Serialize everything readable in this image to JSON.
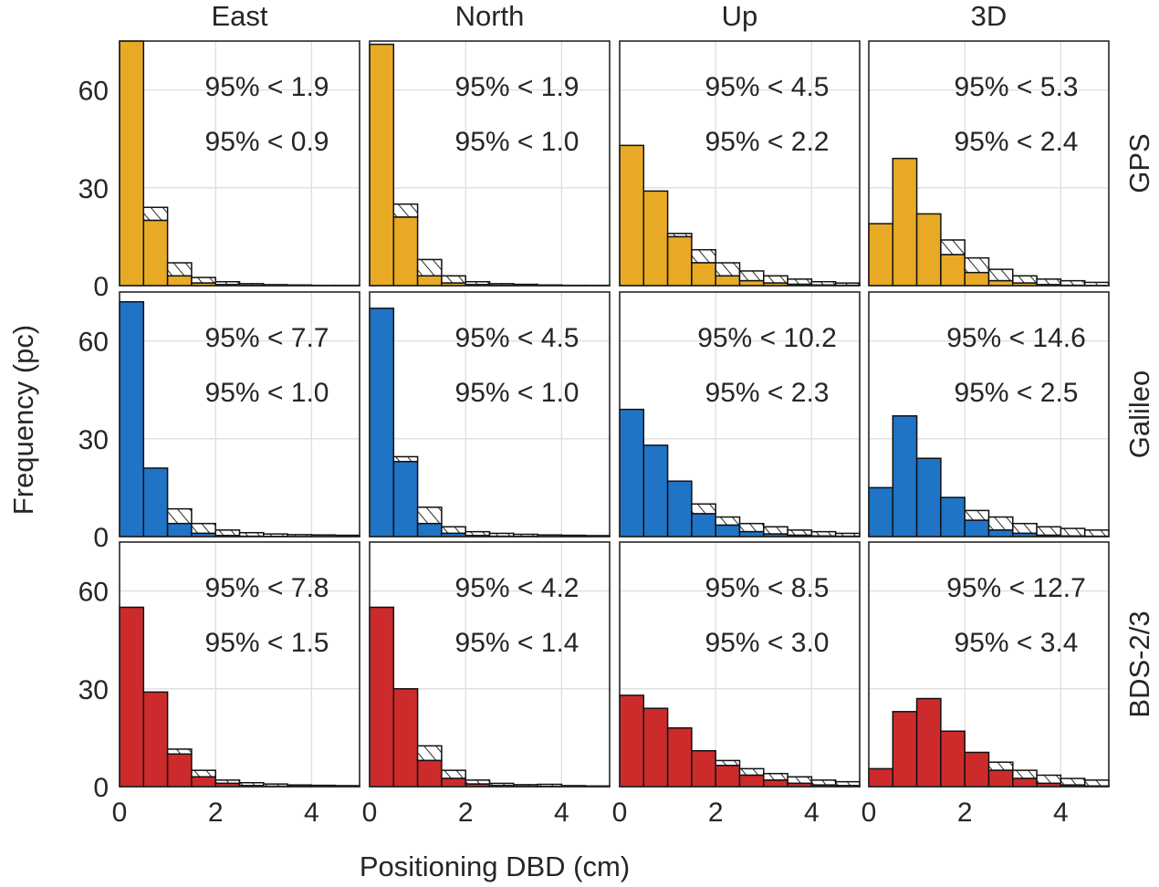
{
  "chart_data": {
    "type": "bar",
    "xlabel": "Positioning DBD (cm)",
    "ylabel": "Frequency (pc)",
    "xlim": [
      0,
      5
    ],
    "ylim": [
      0,
      75
    ],
    "xticks": [
      "0",
      "2",
      "4"
    ],
    "yticks": [
      "0",
      "30",
      "60"
    ],
    "bin_edges": [
      0,
      0.5,
      1.0,
      1.5,
      2.0,
      2.5,
      3.0,
      3.5,
      4.0,
      4.5,
      5.0
    ],
    "grid": true,
    "colors": {
      "GPS": "#e8aa25",
      "Galileo": "#1f74c6",
      "BDS-2/3": "#cd2b2b",
      "other": "#111111"
    },
    "columns": [
      "East",
      "North",
      "Up",
      "3D"
    ],
    "rows": [
      "GPS",
      "Galileo",
      "BDS-2/3"
    ],
    "panels": [
      {
        "row": "GPS",
        "col": "East",
        "stat_other": "95% < 1.9",
        "stat_system": "95% < 0.9",
        "system": [
          78,
          20,
          3,
          0.8,
          0.3,
          0.1,
          0.05,
          0,
          0,
          0
        ],
        "total": [
          78,
          24,
          7,
          2.5,
          1.2,
          0.6,
          0.3,
          0.2,
          0.1,
          0.1
        ]
      },
      {
        "row": "GPS",
        "col": "North",
        "stat_other": "95% < 1.9",
        "stat_system": "95% < 1.0",
        "system": [
          74,
          21,
          3,
          0.8,
          0.3,
          0.1,
          0.05,
          0,
          0,
          0
        ],
        "total": [
          74,
          25,
          8,
          3,
          1.2,
          0.6,
          0.4,
          0.2,
          0.1,
          0.1
        ]
      },
      {
        "row": "GPS",
        "col": "Up",
        "stat_other": "95% < 4.5",
        "stat_system": "95% < 2.2",
        "system": [
          43,
          29,
          15,
          7,
          3,
          1.5,
          0.8,
          0.4,
          0.2,
          0.1
        ],
        "total": [
          43,
          29,
          16,
          11,
          7,
          4.5,
          3,
          2,
          1.2,
          0.8
        ]
      },
      {
        "row": "GPS",
        "col": "3D",
        "stat_other": "95% < 5.3",
        "stat_system": "95% < 2.4",
        "system": [
          19,
          39,
          22,
          9.5,
          4,
          1.5,
          0.8,
          0.3,
          0.1,
          0.05
        ],
        "total": [
          19,
          39,
          22,
          14,
          8.5,
          5,
          3,
          2,
          1.5,
          1
        ]
      },
      {
        "row": "Galileo",
        "col": "East",
        "stat_other": "95% < 7.7",
        "stat_system": "95% < 1.0",
        "system": [
          72,
          21,
          4,
          1,
          0.3,
          0.1,
          0.05,
          0,
          0,
          0
        ],
        "total": [
          72,
          21,
          8.5,
          4,
          2,
          1.2,
          0.8,
          0.6,
          0.5,
          0.4
        ]
      },
      {
        "row": "Galileo",
        "col": "North",
        "stat_other": "95% < 4.5",
        "stat_system": "95% < 1.0",
        "system": [
          70,
          23,
          4,
          1,
          0.3,
          0.1,
          0.05,
          0,
          0,
          0
        ],
        "total": [
          70,
          24.5,
          9,
          3,
          1.5,
          1,
          0.7,
          0.5,
          0.4,
          0.3
        ]
      },
      {
        "row": "Galileo",
        "col": "Up",
        "stat_other": "95% < 10.2",
        "stat_system": "95% < 2.3",
        "system": [
          39,
          28,
          17,
          7,
          3.5,
          1.5,
          0.8,
          0.4,
          0.2,
          0.1
        ],
        "total": [
          39,
          28,
          17,
          10,
          6,
          4,
          3,
          2,
          1.5,
          1
        ]
      },
      {
        "row": "Galileo",
        "col": "3D",
        "stat_other": "95% < 14.6",
        "stat_system": "95% < 2.5",
        "system": [
          15,
          37,
          24,
          12,
          5,
          2,
          1,
          0.4,
          0.2,
          0.1
        ],
        "total": [
          15,
          37,
          24,
          12,
          8,
          6,
          4,
          3,
          2.5,
          2
        ]
      },
      {
        "row": "BDS-2/3",
        "col": "East",
        "stat_other": "95% < 7.8",
        "stat_system": "95% < 1.5",
        "system": [
          55,
          29,
          10,
          3,
          1,
          0.3,
          0.1,
          0.05,
          0,
          0
        ],
        "total": [
          55,
          29,
          11.5,
          5,
          2,
          1.2,
          0.8,
          0.5,
          0.4,
          0.3
        ]
      },
      {
        "row": "BDS-2/3",
        "col": "North",
        "stat_other": "95% < 4.2",
        "stat_system": "95% < 1.4",
        "system": [
          55,
          30,
          8,
          2.5,
          0.8,
          0.3,
          0.1,
          0.05,
          0,
          0
        ],
        "total": [
          55,
          30,
          12.5,
          5,
          2,
          1,
          0.6,
          0.7,
          0.3,
          0.2
        ]
      },
      {
        "row": "BDS-2/3",
        "col": "Up",
        "stat_other": "95% < 8.5",
        "stat_system": "95% < 3.0",
        "system": [
          28,
          24,
          18,
          11,
          6.5,
          3.5,
          2,
          1,
          0.5,
          0.3
        ],
        "total": [
          28,
          24,
          18,
          11,
          8,
          5.5,
          4,
          3,
          2,
          1.5
        ]
      },
      {
        "row": "BDS-2/3",
        "col": "3D",
        "stat_other": "95% < 12.7",
        "stat_system": "95% < 3.4",
        "system": [
          5.5,
          23,
          27,
          17,
          10.5,
          5,
          2.5,
          1,
          0.5,
          0.2
        ],
        "total": [
          5.5,
          23,
          27,
          17,
          10.5,
          7.5,
          5,
          3.5,
          2.5,
          2
        ]
      }
    ]
  }
}
